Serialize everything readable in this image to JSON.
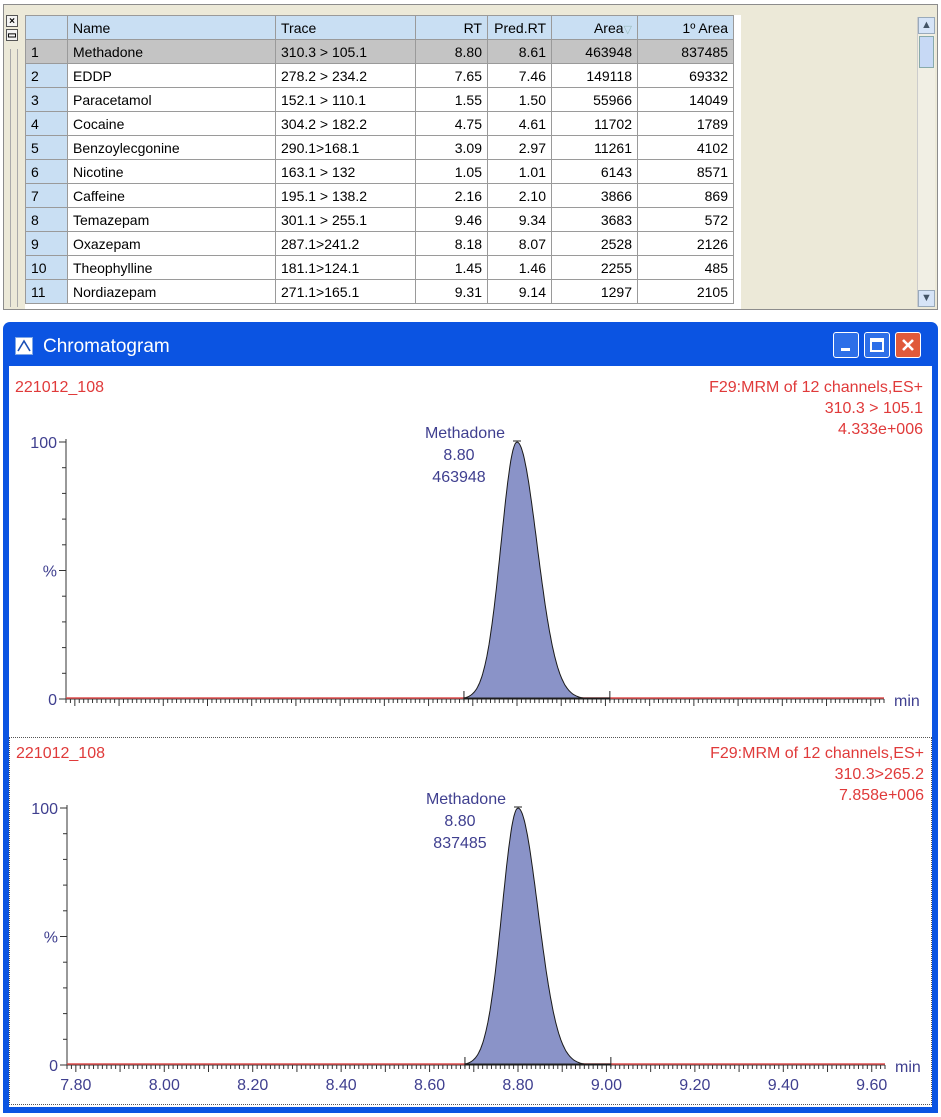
{
  "table": {
    "columns": [
      {
        "key": "idx",
        "label": "",
        "width": 42,
        "align": "left"
      },
      {
        "key": "name",
        "label": "Name",
        "width": 208,
        "align": "left"
      },
      {
        "key": "trace",
        "label": "Trace",
        "width": 140,
        "align": "left"
      },
      {
        "key": "rt",
        "label": "RT",
        "width": 72,
        "align": "right"
      },
      {
        "key": "pred_rt",
        "label": "Pred.RT",
        "width": 64,
        "align": "right"
      },
      {
        "key": "area",
        "label": "Area",
        "width": 86,
        "align": "right"
      },
      {
        "key": "area1",
        "label": "1º Area",
        "width": 96,
        "align": "right"
      }
    ],
    "sort_indicator": "▽",
    "selected_row": 0,
    "rows": [
      {
        "idx": "1",
        "name": "Methadone",
        "trace": "310.3 > 105.1",
        "rt": "8.80",
        "pred_rt": "8.61",
        "area": "463948",
        "area1": "837485"
      },
      {
        "idx": "2",
        "name": "EDDP",
        "trace": "278.2 > 234.2",
        "rt": "7.65",
        "pred_rt": "7.46",
        "area": "149118",
        "area1": "69332"
      },
      {
        "idx": "3",
        "name": "Paracetamol",
        "trace": "152.1 > 110.1",
        "rt": "1.55",
        "pred_rt": "1.50",
        "area": "55966",
        "area1": "14049"
      },
      {
        "idx": "4",
        "name": "Cocaine",
        "trace": "304.2 > 182.2",
        "rt": "4.75",
        "pred_rt": "4.61",
        "area": "11702",
        "area1": "1789"
      },
      {
        "idx": "5",
        "name": "Benzoylecgonine",
        "trace": "290.1>168.1",
        "rt": "3.09",
        "pred_rt": "2.97",
        "area": "11261",
        "area1": "4102"
      },
      {
        "idx": "6",
        "name": "Nicotine",
        "trace": "163.1 > 132",
        "rt": "1.05",
        "pred_rt": "1.01",
        "area": "6143",
        "area1": "8571"
      },
      {
        "idx": "7",
        "name": "Caffeine",
        "trace": "195.1 > 138.2",
        "rt": "2.16",
        "pred_rt": "2.10",
        "area": "3866",
        "area1": "869"
      },
      {
        "idx": "8",
        "name": "Temazepam",
        "trace": "301.1 > 255.1",
        "rt": "9.46",
        "pred_rt": "9.34",
        "area": "3683",
        "area1": "572"
      },
      {
        "idx": "9",
        "name": "Oxazepam",
        "trace": "287.1>241.2",
        "rt": "8.18",
        "pred_rt": "8.07",
        "area": "2528",
        "area1": "2126"
      },
      {
        "idx": "10",
        "name": "Theophylline",
        "trace": "181.1>124.1",
        "rt": "1.45",
        "pred_rt": "1.46",
        "area": "2255",
        "area1": "485"
      },
      {
        "idx": "11",
        "name": "Nordiazepam",
        "trace": "271.1>165.1",
        "rt": "9.31",
        "pred_rt": "9.14",
        "area": "1297",
        "area1": "2105"
      }
    ]
  },
  "side_buttons": {
    "close_label": "×",
    "restore_label": "▭"
  },
  "window": {
    "title": "Chromatogram"
  },
  "colors": {
    "accent_text": "#e03a3a",
    "axis_text": "#3f3f8f",
    "peak_fill": "#8a93c8",
    "peak_stroke": "#1a1a1a",
    "baseline": "#e05050",
    "titlebar": "#0b54e2",
    "header_bg": "#c9dff3"
  },
  "chart_data": [
    {
      "type": "area",
      "sample": "221012_108",
      "function": "F29:MRM of 12 channels,ES+",
      "transition": "310.3 > 105.1",
      "intensity": "4.333e+006",
      "ylabel": "%",
      "xlabel": "min",
      "y_ticks": [
        "100",
        "0"
      ],
      "ylim": [
        0,
        100
      ],
      "xlim": [
        7.78,
        9.63
      ],
      "peak": {
        "label": "Methadone",
        "rt": "8.80",
        "area": "463948",
        "center": 8.8,
        "sigma": 0.036,
        "start": 8.68,
        "end": 9.01,
        "height": 100
      },
      "show_x_labels": false
    },
    {
      "type": "area",
      "sample": "221012_108",
      "function": "F29:MRM of 12 channels,ES+",
      "transition": "310.3>265.2",
      "intensity": "7.858e+006",
      "ylabel": "%",
      "xlabel": "min",
      "y_ticks": [
        "100",
        "0"
      ],
      "ylim": [
        0,
        100
      ],
      "xlim": [
        7.78,
        9.63
      ],
      "x_tick_labels": [
        "7.80",
        "8.00",
        "8.20",
        "8.40",
        "8.60",
        "8.80",
        "9.00",
        "9.20",
        "9.40",
        "9.60"
      ],
      "peak": {
        "label": "Methadone",
        "rt": "8.80",
        "area": "837485",
        "center": 8.8,
        "sigma": 0.036,
        "start": 8.68,
        "end": 9.01,
        "height": 100
      },
      "show_x_labels": true
    }
  ]
}
